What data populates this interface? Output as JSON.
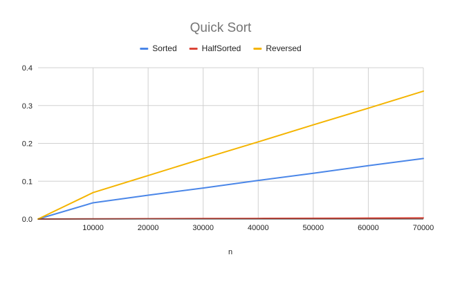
{
  "chart_data": {
    "type": "line",
    "title": "Quick Sort",
    "xlabel": "n",
    "ylabel": "",
    "x": [
      0,
      10000,
      20000,
      30000,
      40000,
      50000,
      60000,
      70000
    ],
    "xticks": [
      10000,
      20000,
      30000,
      40000,
      50000,
      60000,
      70000
    ],
    "xlim": [
      0,
      70000
    ],
    "ylim": [
      0,
      0.4
    ],
    "yticks": [
      0.0,
      0.1,
      0.2,
      0.3,
      0.4
    ],
    "yticklabels": [
      "0.0",
      "0.1",
      "0.2",
      "0.3",
      "0.4"
    ],
    "grid": true,
    "legend_position": "top",
    "series": [
      {
        "name": "Sorted",
        "color": "#4a86e8",
        "values": [
          0,
          0.043,
          0.063,
          0.082,
          0.102,
          0.121,
          0.141,
          0.16
        ]
      },
      {
        "name": "HalfSorted",
        "color": "#db4437",
        "values": [
          0,
          0.0005,
          0.001,
          0.0013,
          0.0017,
          0.002,
          0.0025,
          0.003
        ]
      },
      {
        "name": "Reversed",
        "color": "#f4b400",
        "values": [
          0,
          0.07,
          0.115,
          0.16,
          0.204,
          0.249,
          0.293,
          0.338
        ]
      }
    ]
  }
}
